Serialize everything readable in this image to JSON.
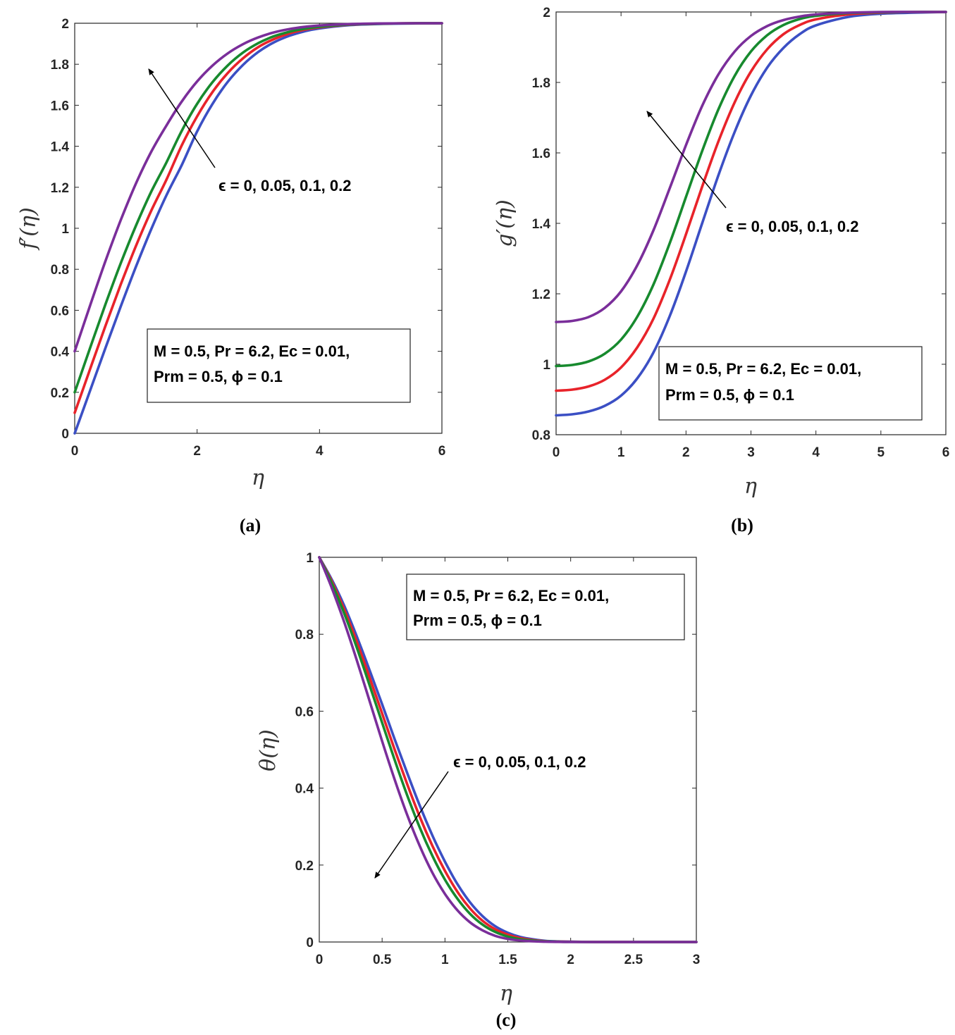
{
  "chart_data": [
    {
      "type": "line",
      "panel_label": "(a)",
      "xlabel": "η",
      "ylabel": "f′(η)",
      "xlim": [
        0,
        6
      ],
      "ylim": [
        0,
        2
      ],
      "xticks": [
        "0",
        "2",
        "4",
        "6"
      ],
      "yticks": [
        "0",
        "0.2",
        "0.4",
        "0.6",
        "0.8",
        "1",
        "1.2",
        "1.4",
        "1.6",
        "1.8",
        "2"
      ],
      "annotation": "ϵ = 0, 0.05, 0.1, 0.2",
      "params_line1": "M = 0.5, Pr = 6.2, Ec = 0.01,",
      "params_line2": "Prm = 0.5, ϕ = 0.1",
      "series": [
        {
          "name": "ϵ = 0",
          "color": "#3b4fc4",
          "x": [
            0,
            0.25,
            0.5,
            0.75,
            1,
            1.25,
            1.5,
            1.75,
            2,
            2.25,
            2.5,
            2.75,
            3,
            3.25,
            3.5,
            3.75,
            4,
            4.5,
            5,
            5.5,
            6
          ],
          "y": [
            0,
            0.207,
            0.414,
            0.617,
            0.812,
            0.995,
            1.162,
            1.309,
            1.472,
            1.606,
            1.714,
            1.797,
            1.86,
            1.906,
            1.938,
            1.96,
            1.975,
            1.991,
            1.997,
            1.999,
            2.0
          ]
        },
        {
          "name": "ϵ = 0.05",
          "color": "#e8232a",
          "x": [
            0,
            0.25,
            0.5,
            0.75,
            1,
            1.25,
            1.5,
            1.75,
            2,
            2.25,
            2.5,
            2.75,
            3,
            3.25,
            3.5,
            3.75,
            4,
            4.5,
            5,
            5.5,
            6
          ],
          "y": [
            0.1,
            0.312,
            0.522,
            0.724,
            0.913,
            1.085,
            1.238,
            1.405,
            1.546,
            1.664,
            1.757,
            1.829,
            1.884,
            1.922,
            1.95,
            1.968,
            1.98,
            1.993,
            1.998,
            2.0,
            2.0
          ]
        },
        {
          "name": "ϵ = 0.1",
          "color": "#178a2e",
          "x": [
            0,
            0.25,
            0.5,
            0.75,
            1,
            1.25,
            1.5,
            1.75,
            2,
            2.25,
            2.5,
            2.75,
            3,
            3.25,
            3.5,
            3.75,
            4,
            4.5,
            5,
            5.5,
            6
          ],
          "y": [
            0.2,
            0.415,
            0.627,
            0.828,
            1.012,
            1.178,
            1.322,
            1.476,
            1.607,
            1.712,
            1.794,
            1.857,
            1.903,
            1.936,
            1.958,
            1.973,
            1.983,
            1.994,
            1.998,
            2.0,
            2.0
          ]
        },
        {
          "name": "ϵ = 0.2",
          "color": "#7a2e9a",
          "x": [
            0,
            0.25,
            0.5,
            0.75,
            1,
            1.25,
            1.5,
            1.75,
            2,
            2.25,
            2.5,
            2.75,
            3,
            3.25,
            3.5,
            3.75,
            4,
            4.5,
            5,
            5.5,
            6
          ],
          "y": [
            0.4,
            0.622,
            0.838,
            1.038,
            1.218,
            1.373,
            1.502,
            1.619,
            1.716,
            1.793,
            1.853,
            1.898,
            1.931,
            1.955,
            1.971,
            1.982,
            1.989,
            1.996,
            1.999,
            2.0,
            2.0
          ]
        }
      ]
    },
    {
      "type": "line",
      "panel_label": "(b)",
      "xlabel": "η",
      "ylabel": "g′(η)",
      "xlim": [
        0,
        6
      ],
      "ylim": [
        0.8,
        2
      ],
      "xticks": [
        "0",
        "1",
        "2",
        "3",
        "4",
        "5",
        "6"
      ],
      "yticks": [
        "0.8",
        "1",
        "1.2",
        "1.4",
        "1.6",
        "1.8",
        "2"
      ],
      "annotation": "ϵ = 0, 0.05, 0.1, 0.2",
      "params_line1": "M = 0.5, Pr = 6.2, Ec = 0.01,",
      "params_line2": "Prm = 0.5, ϕ = 0.1",
      "series": [
        {
          "name": "ϵ = 0",
          "color": "#3b4fc4",
          "x": [
            0,
            0.25,
            0.5,
            0.75,
            1,
            1.25,
            1.5,
            1.75,
            2,
            2.25,
            2.5,
            2.75,
            3,
            3.25,
            3.5,
            3.75,
            4,
            4.5,
            5,
            5.5,
            6
          ],
          "y": [
            0.855,
            0.858,
            0.866,
            0.882,
            0.911,
            0.96,
            1.034,
            1.137,
            1.263,
            1.401,
            1.537,
            1.66,
            1.763,
            1.842,
            1.898,
            1.937,
            1.962,
            1.986,
            1.995,
            1.998,
            2.0
          ]
        },
        {
          "name": "ϵ = 0.05",
          "color": "#e8232a",
          "x": [
            0,
            0.25,
            0.5,
            0.75,
            1,
            1.25,
            1.5,
            1.75,
            2,
            2.25,
            2.5,
            2.75,
            3,
            3.25,
            3.5,
            3.75,
            4,
            4.5,
            5,
            5.5,
            6
          ],
          "y": [
            0.925,
            0.928,
            0.937,
            0.956,
            0.991,
            1.048,
            1.13,
            1.24,
            1.369,
            1.505,
            1.633,
            1.744,
            1.831,
            1.894,
            1.937,
            1.963,
            1.979,
            1.993,
            1.998,
            2.0,
            2.0
          ]
        },
        {
          "name": "ϵ = 0.1",
          "color": "#178a2e",
          "x": [
            0,
            0.25,
            0.5,
            0.75,
            1,
            1.25,
            1.5,
            1.75,
            2,
            2.25,
            2.5,
            2.75,
            3,
            3.25,
            3.5,
            3.75,
            4,
            4.5,
            5,
            5.5,
            6
          ],
          "y": [
            0.995,
            0.998,
            1.008,
            1.03,
            1.07,
            1.135,
            1.227,
            1.344,
            1.475,
            1.606,
            1.724,
            1.819,
            1.888,
            1.934,
            1.963,
            1.98,
            1.989,
            1.997,
            1.999,
            2.0,
            2.0
          ]
        },
        {
          "name": "ϵ = 0.2",
          "color": "#7a2e9a",
          "x": [
            0,
            0.25,
            0.5,
            0.75,
            1,
            1.25,
            1.5,
            1.75,
            2,
            2.25,
            2.5,
            2.75,
            3,
            3.25,
            3.5,
            3.75,
            4,
            4.5,
            5,
            5.5,
            6
          ],
          "y": [
            1.12,
            1.123,
            1.134,
            1.16,
            1.207,
            1.281,
            1.381,
            1.5,
            1.622,
            1.734,
            1.823,
            1.888,
            1.932,
            1.96,
            1.977,
            1.987,
            1.993,
            1.998,
            2.0,
            2.0,
            2.0
          ]
        }
      ]
    },
    {
      "type": "line",
      "panel_label": "(c)",
      "xlabel": "η",
      "ylabel": "θ(η)",
      "xlim": [
        0,
        3
      ],
      "ylim": [
        0,
        1
      ],
      "xticks": [
        "0",
        "0.5",
        "1",
        "1.5",
        "2",
        "2.5",
        "3"
      ],
      "yticks": [
        "0",
        "0.2",
        "0.4",
        "0.6",
        "0.8",
        "1"
      ],
      "annotation": "ϵ = 0, 0.05, 0.1, 0.2",
      "params_line1": "M = 0.5, Pr = 6.2, Ec = 0.01,",
      "params_line2": "Prm = 0.5, ϕ = 0.1",
      "series": [
        {
          "name": "ϵ = 0",
          "color": "#3b4fc4",
          "x": [
            0,
            0.1,
            0.2,
            0.3,
            0.4,
            0.5,
            0.6,
            0.7,
            0.8,
            0.9,
            1.0,
            1.1,
            1.2,
            1.3,
            1.4,
            1.5,
            1.6,
            1.7,
            1.8,
            1.9,
            2.0,
            2.2,
            2.5,
            3.0
          ],
          "y": [
            1.0,
            0.942,
            0.873,
            0.793,
            0.707,
            0.618,
            0.527,
            0.439,
            0.354,
            0.277,
            0.209,
            0.15,
            0.103,
            0.067,
            0.041,
            0.024,
            0.013,
            0.007,
            0.003,
            0.0015,
            0.0007,
            0.0001,
            0.0,
            0.0
          ]
        },
        {
          "name": "ϵ = 0.05",
          "color": "#e8232a",
          "x": [
            0,
            0.1,
            0.2,
            0.3,
            0.4,
            0.5,
            0.6,
            0.7,
            0.8,
            0.9,
            1.0,
            1.1,
            1.2,
            1.3,
            1.4,
            1.5,
            1.6,
            1.7,
            1.8,
            1.9,
            2.0,
            2.2,
            2.5,
            3.0
          ],
          "y": [
            1.0,
            0.937,
            0.863,
            0.779,
            0.688,
            0.594,
            0.5,
            0.41,
            0.325,
            0.25,
            0.185,
            0.13,
            0.087,
            0.055,
            0.033,
            0.019,
            0.01,
            0.005,
            0.002,
            0.001,
            0.0005,
            0.0001,
            0.0,
            0.0
          ]
        },
        {
          "name": "ϵ = 0.1",
          "color": "#178a2e",
          "x": [
            0,
            0.1,
            0.2,
            0.3,
            0.4,
            0.5,
            0.6,
            0.7,
            0.8,
            0.9,
            1.0,
            1.1,
            1.2,
            1.3,
            1.4,
            1.5,
            1.6,
            1.7,
            1.8,
            1.9,
            2.0,
            2.2,
            2.5,
            3.0
          ],
          "y": [
            1.0,
            0.932,
            0.853,
            0.764,
            0.668,
            0.57,
            0.473,
            0.381,
            0.297,
            0.224,
            0.162,
            0.112,
            0.073,
            0.045,
            0.026,
            0.014,
            0.007,
            0.0035,
            0.0016,
            0.0007,
            0.0003,
            0.0,
            0.0,
            0.0
          ]
        },
        {
          "name": "ϵ = 0.2",
          "color": "#7a2e9a",
          "x": [
            0,
            0.1,
            0.2,
            0.3,
            0.4,
            0.5,
            0.6,
            0.7,
            0.8,
            0.9,
            1.0,
            1.1,
            1.2,
            1.3,
            1.4,
            1.5,
            1.6,
            1.7,
            1.8,
            1.9,
            2.0,
            2.2,
            2.5,
            3.0
          ],
          "y": [
            1.0,
            0.92,
            0.83,
            0.731,
            0.627,
            0.522,
            0.422,
            0.33,
            0.249,
            0.18,
            0.125,
            0.082,
            0.051,
            0.03,
            0.016,
            0.008,
            0.004,
            0.0018,
            0.0008,
            0.0003,
            0.0001,
            0.0,
            0.0,
            0.0
          ]
        }
      ]
    }
  ]
}
